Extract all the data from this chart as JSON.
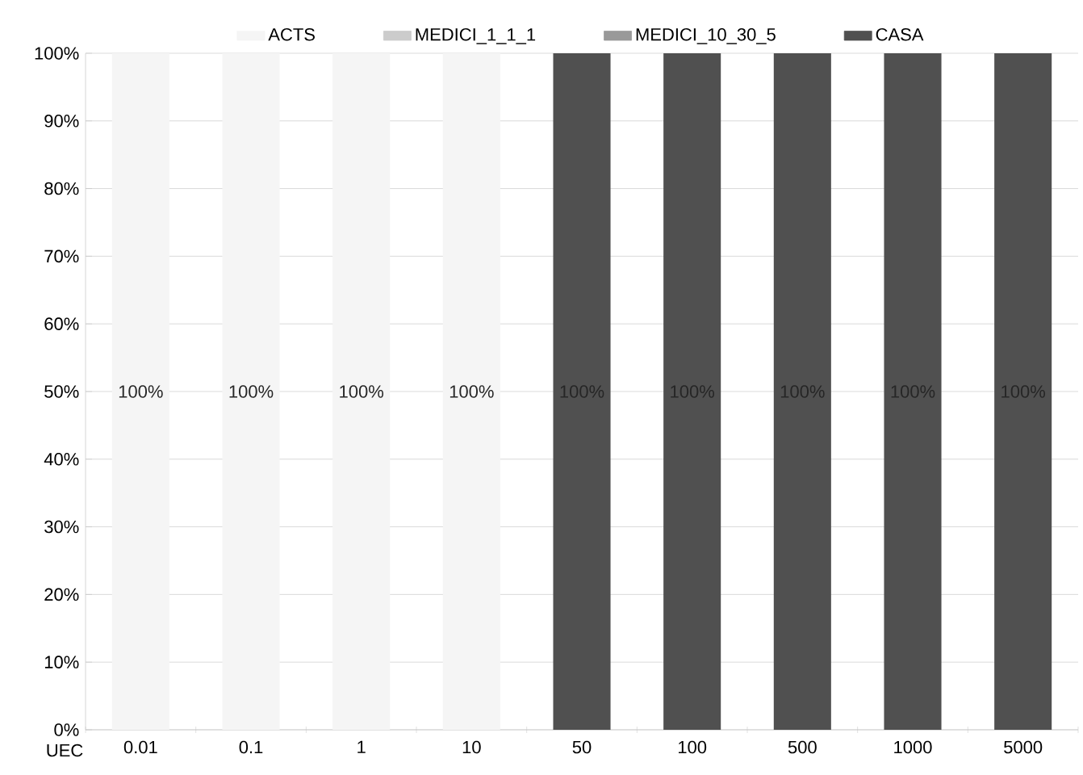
{
  "chart_data": {
    "type": "bar",
    "xlabel": "UEC",
    "categories": [
      "0.01",
      "0.1",
      "1",
      "10",
      "50",
      "100",
      "500",
      "1000",
      "5000"
    ],
    "series": [
      {
        "name": "ACTS",
        "color": "#f5f5f5",
        "values": [
          100,
          100,
          100,
          100,
          null,
          null,
          null,
          null,
          null
        ],
        "value_labels": [
          "100%",
          "100%",
          "100%",
          "100%",
          null,
          null,
          null,
          null,
          null
        ]
      },
      {
        "name": "MEDICI_1_1_1",
        "color": "#cccccc",
        "values": [
          null,
          null,
          null,
          null,
          null,
          null,
          null,
          null,
          null
        ]
      },
      {
        "name": "MEDICI_10_30_5",
        "color": "#999999",
        "values": [
          null,
          null,
          null,
          null,
          null,
          null,
          null,
          null,
          null
        ]
      },
      {
        "name": "CASA",
        "color": "#505050",
        "values": [
          null,
          null,
          null,
          null,
          100,
          100,
          100,
          100,
          100
        ],
        "value_labels": [
          null,
          null,
          null,
          null,
          "100%",
          "100%",
          "100%",
          "100%",
          "100%"
        ]
      }
    ],
    "ylim": [
      0,
      100
    ],
    "yticks": [
      {
        "value": 0,
        "label": "0%"
      },
      {
        "value": 10,
        "label": "10%"
      },
      {
        "value": 20,
        "label": "20%"
      },
      {
        "value": 30,
        "label": "30%"
      },
      {
        "value": 40,
        "label": "40%"
      },
      {
        "value": 50,
        "label": "50%"
      },
      {
        "value": 60,
        "label": "60%"
      },
      {
        "value": 70,
        "label": "70%"
      },
      {
        "value": 80,
        "label": "80%"
      },
      {
        "value": 90,
        "label": "90%"
      },
      {
        "value": 100,
        "label": "100%"
      }
    ],
    "grid": "y",
    "legend": "top"
  }
}
